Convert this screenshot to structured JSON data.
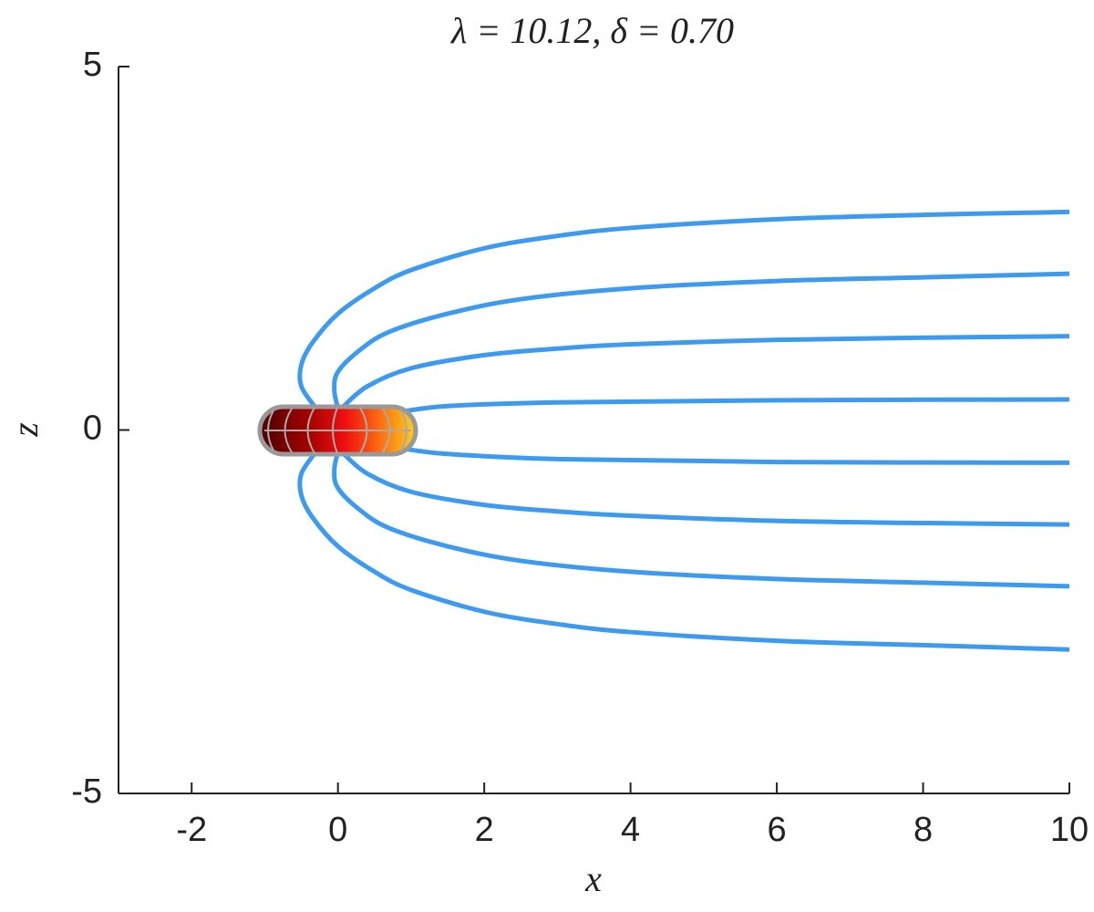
{
  "chart_data": {
    "type": "line",
    "title": "λ = 10.12,    δ = 0.70",
    "xlabel": "x",
    "ylabel": "z",
    "xlim": [
      -3,
      10
    ],
    "xticks": [
      -2,
      0,
      2,
      4,
      6,
      8,
      10
    ],
    "ylim": [
      -5,
      5
    ],
    "yticks": [
      -5,
      0,
      5
    ],
    "series": [
      {
        "color": "#3c9bf0",
        "x": [
          -0.3,
          -0.5,
          -0.5,
          -0.35,
          0,
          0.5,
          1,
          2,
          3,
          4,
          6,
          8,
          10
        ],
        "values": [
          0.3,
          0.6,
          0.9,
          1.2,
          1.6,
          1.95,
          2.2,
          2.5,
          2.67,
          2.78,
          2.9,
          2.96,
          3.0
        ]
      },
      {
        "color": "#3c9bf0",
        "x": [
          0,
          -0.05,
          0,
          0.3,
          0.7,
          1.5,
          2.5,
          4,
          6,
          8,
          10
        ],
        "values": [
          0.3,
          0.55,
          0.8,
          1.1,
          1.35,
          1.6,
          1.8,
          1.95,
          2.05,
          2.1,
          2.15
        ]
      },
      {
        "color": "#3c9bf0",
        "x": [
          0.05,
          0.4,
          1,
          2,
          3,
          4,
          6,
          8,
          10
        ],
        "values": [
          0.3,
          0.6,
          0.85,
          1.03,
          1.12,
          1.18,
          1.24,
          1.27,
          1.29
        ]
      },
      {
        "color": "#3c9bf0",
        "x": [
          0.85,
          1.5,
          3,
          6,
          10
        ],
        "values": [
          0.25,
          0.33,
          0.38,
          0.41,
          0.42
        ]
      },
      {
        "color": "#3c9bf0",
        "x": [
          0.85,
          1.5,
          3,
          6,
          10
        ],
        "values": [
          -0.25,
          -0.33,
          -0.4,
          -0.44,
          -0.45
        ]
      },
      {
        "color": "#3c9bf0",
        "x": [
          0.05,
          0.4,
          1,
          2,
          3,
          4,
          6,
          8,
          10
        ],
        "values": [
          -0.3,
          -0.6,
          -0.85,
          -1.03,
          -1.12,
          -1.18,
          -1.25,
          -1.28,
          -1.3
        ]
      },
      {
        "color": "#3c9bf0",
        "x": [
          0,
          -0.05,
          0,
          0.3,
          0.7,
          1.5,
          2.5,
          4,
          6,
          8,
          10
        ],
        "values": [
          -0.3,
          -0.55,
          -0.8,
          -1.1,
          -1.35,
          -1.6,
          -1.8,
          -1.95,
          -2.05,
          -2.1,
          -2.15
        ]
      },
      {
        "color": "#3c9bf0",
        "x": [
          -0.3,
          -0.5,
          -0.5,
          -0.35,
          0,
          0.5,
          1,
          2,
          3,
          4,
          6,
          8,
          10
        ],
        "values": [
          -0.3,
          -0.6,
          -0.9,
          -1.2,
          -1.6,
          -1.95,
          -2.2,
          -2.5,
          -2.67,
          -2.78,
          -2.9,
          -2.96,
          -3.02
        ]
      }
    ]
  }
}
